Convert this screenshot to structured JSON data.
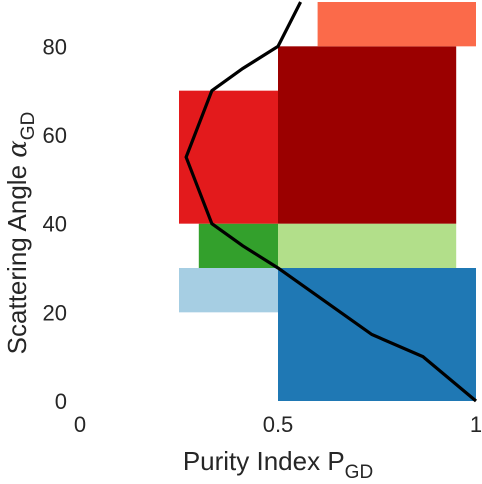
{
  "chart_data": {
    "type": "scatter",
    "title": "",
    "xlabel": {
      "main": "Purity Index P",
      "subscript": "GD"
    },
    "ylabel": {
      "main": "Scattering Angle ",
      "symbol": "α",
      "subscript": "GD"
    },
    "xlim": [
      0,
      1
    ],
    "ylim": [
      0,
      90
    ],
    "xticks": [
      0,
      0.5,
      1
    ],
    "xtick_labels": [
      "0",
      "0.5",
      "1"
    ],
    "yticks": [
      0,
      20,
      40,
      60,
      80
    ],
    "ytick_labels": [
      "0",
      "20",
      "40",
      "60",
      "80"
    ],
    "grid": false,
    "boundary_curve": {
      "description_color": "#000000",
      "points": [
        {
          "x": 1.0,
          "y": 0
        },
        {
          "x": 0.866,
          "y": 10
        },
        {
          "x": 0.737,
          "y": 15
        },
        {
          "x": 0.5,
          "y": 30
        },
        {
          "x": 0.411,
          "y": 35
        },
        {
          "x": 0.333,
          "y": 40
        },
        {
          "x": 0.268,
          "y": 55
        },
        {
          "x": 0.333,
          "y": 70
        },
        {
          "x": 0.411,
          "y": 75
        },
        {
          "x": 0.5,
          "y": 80
        },
        {
          "x": 0.557,
          "y": 90
        }
      ]
    },
    "regions": [
      {
        "color": "#1f78b4",
        "x": [
          0.5,
          1.0
        ],
        "y": [
          0,
          30
        ]
      },
      {
        "color": "#a6cee3",
        "x": [
          0.25,
          0.5
        ],
        "y": [
          20,
          30
        ]
      },
      {
        "color": "#b2df8a",
        "x": [
          0.5,
          0.95
        ],
        "y": [
          30,
          40
        ]
      },
      {
        "color": "#33a02c",
        "x": [
          0.3,
          0.5
        ],
        "y": [
          30,
          40
        ]
      },
      {
        "color": "#e31a1c",
        "x": [
          0.25,
          0.5
        ],
        "y": [
          40,
          70
        ]
      },
      {
        "color": "#9b0000",
        "x": [
          0.5,
          0.95
        ],
        "y": [
          40,
          80
        ]
      },
      {
        "color": "#fb6a4a",
        "x": [
          0.6,
          1.0
        ],
        "y": [
          80,
          90
        ]
      }
    ],
    "colors": {
      "blue": "#1f78b4",
      "light_blue": "#a6cee3",
      "green": "#33a02c",
      "light_green": "#b2df8a",
      "red": "#e31a1c",
      "dark_red": "#9b0000",
      "salmon": "#fb6a4a",
      "curve": "#000000"
    }
  }
}
